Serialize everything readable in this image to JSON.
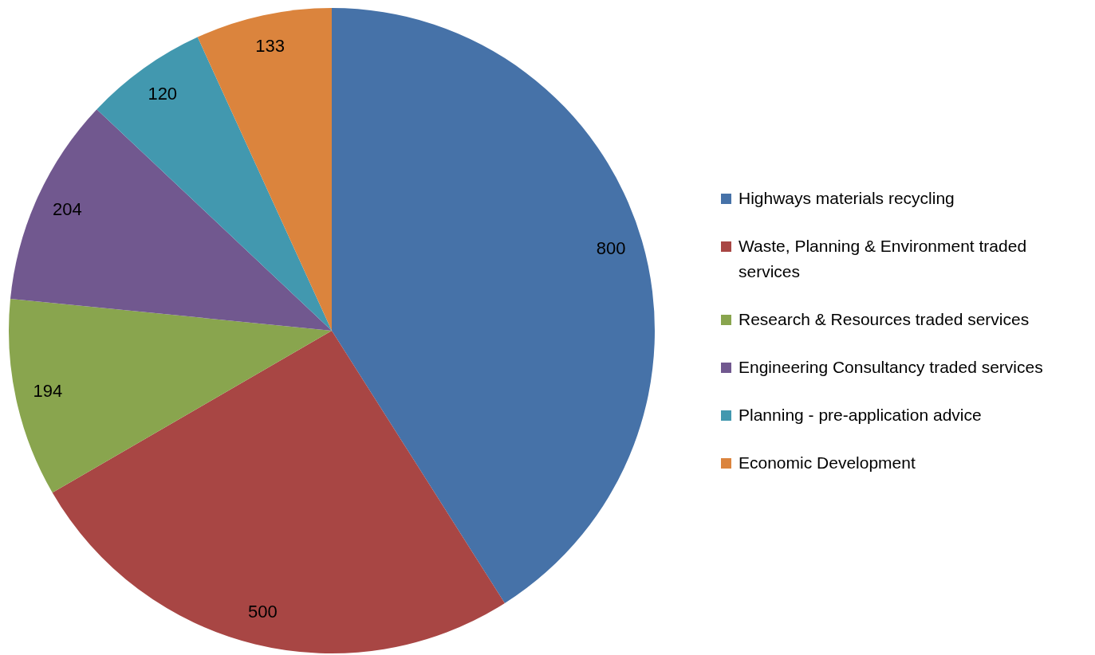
{
  "chart_data": {
    "type": "pie",
    "categories": [
      "Highways materials recycling",
      "Waste, Planning & Environment traded services",
      "Research & Resources traded services",
      "Engineering Consultancy traded services",
      "Planning - pre-application advice",
      "Economic Development"
    ],
    "values": [
      800,
      500,
      194,
      204,
      120,
      133
    ],
    "colors": [
      "#4672a8",
      "#a84644",
      "#89a54e",
      "#71588f",
      "#4298af",
      "#db843d"
    ],
    "data_labels": true,
    "legend": "right"
  }
}
